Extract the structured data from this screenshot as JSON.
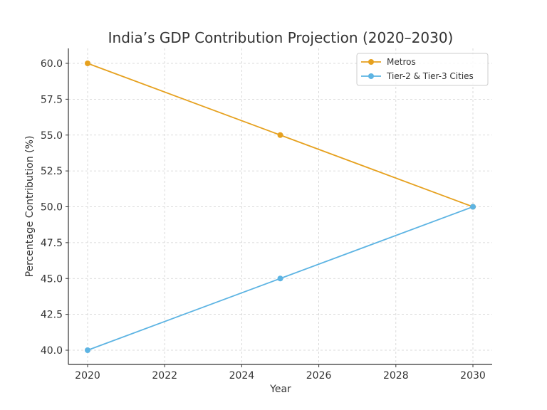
{
  "chart_data": {
    "type": "line",
    "title": "India’s GDP Contribution Projection (2020–2030)",
    "xlabel": "Year",
    "ylabel": "Percentage Contribution (%)",
    "x": [
      2020,
      2025,
      2030
    ],
    "xlim": [
      2019.5,
      2031
    ],
    "ylim": [
      39,
      61
    ],
    "xticks": [
      2020,
      2022,
      2024,
      2026,
      2028,
      2030
    ],
    "xtick_labels": [
      "2020",
      "2022",
      "2024",
      "2026",
      "2028",
      "2030"
    ],
    "yticks": [
      40.0,
      42.5,
      45.0,
      47.5,
      50.0,
      52.5,
      55.0,
      57.5,
      60.0
    ],
    "ytick_labels": [
      "40.0",
      "42.5",
      "45.0",
      "47.5",
      "50.0",
      "52.5",
      "55.0",
      "57.5",
      "60.0"
    ],
    "grid": true,
    "legend_position": "top-right",
    "series": [
      {
        "name": "Metros",
        "color": "#E6A11F",
        "values": [
          60,
          55,
          50
        ]
      },
      {
        "name": "Tier-2 & Tier-3 Cities",
        "color": "#5DB4E3",
        "values": [
          40,
          45,
          50
        ]
      }
    ]
  }
}
